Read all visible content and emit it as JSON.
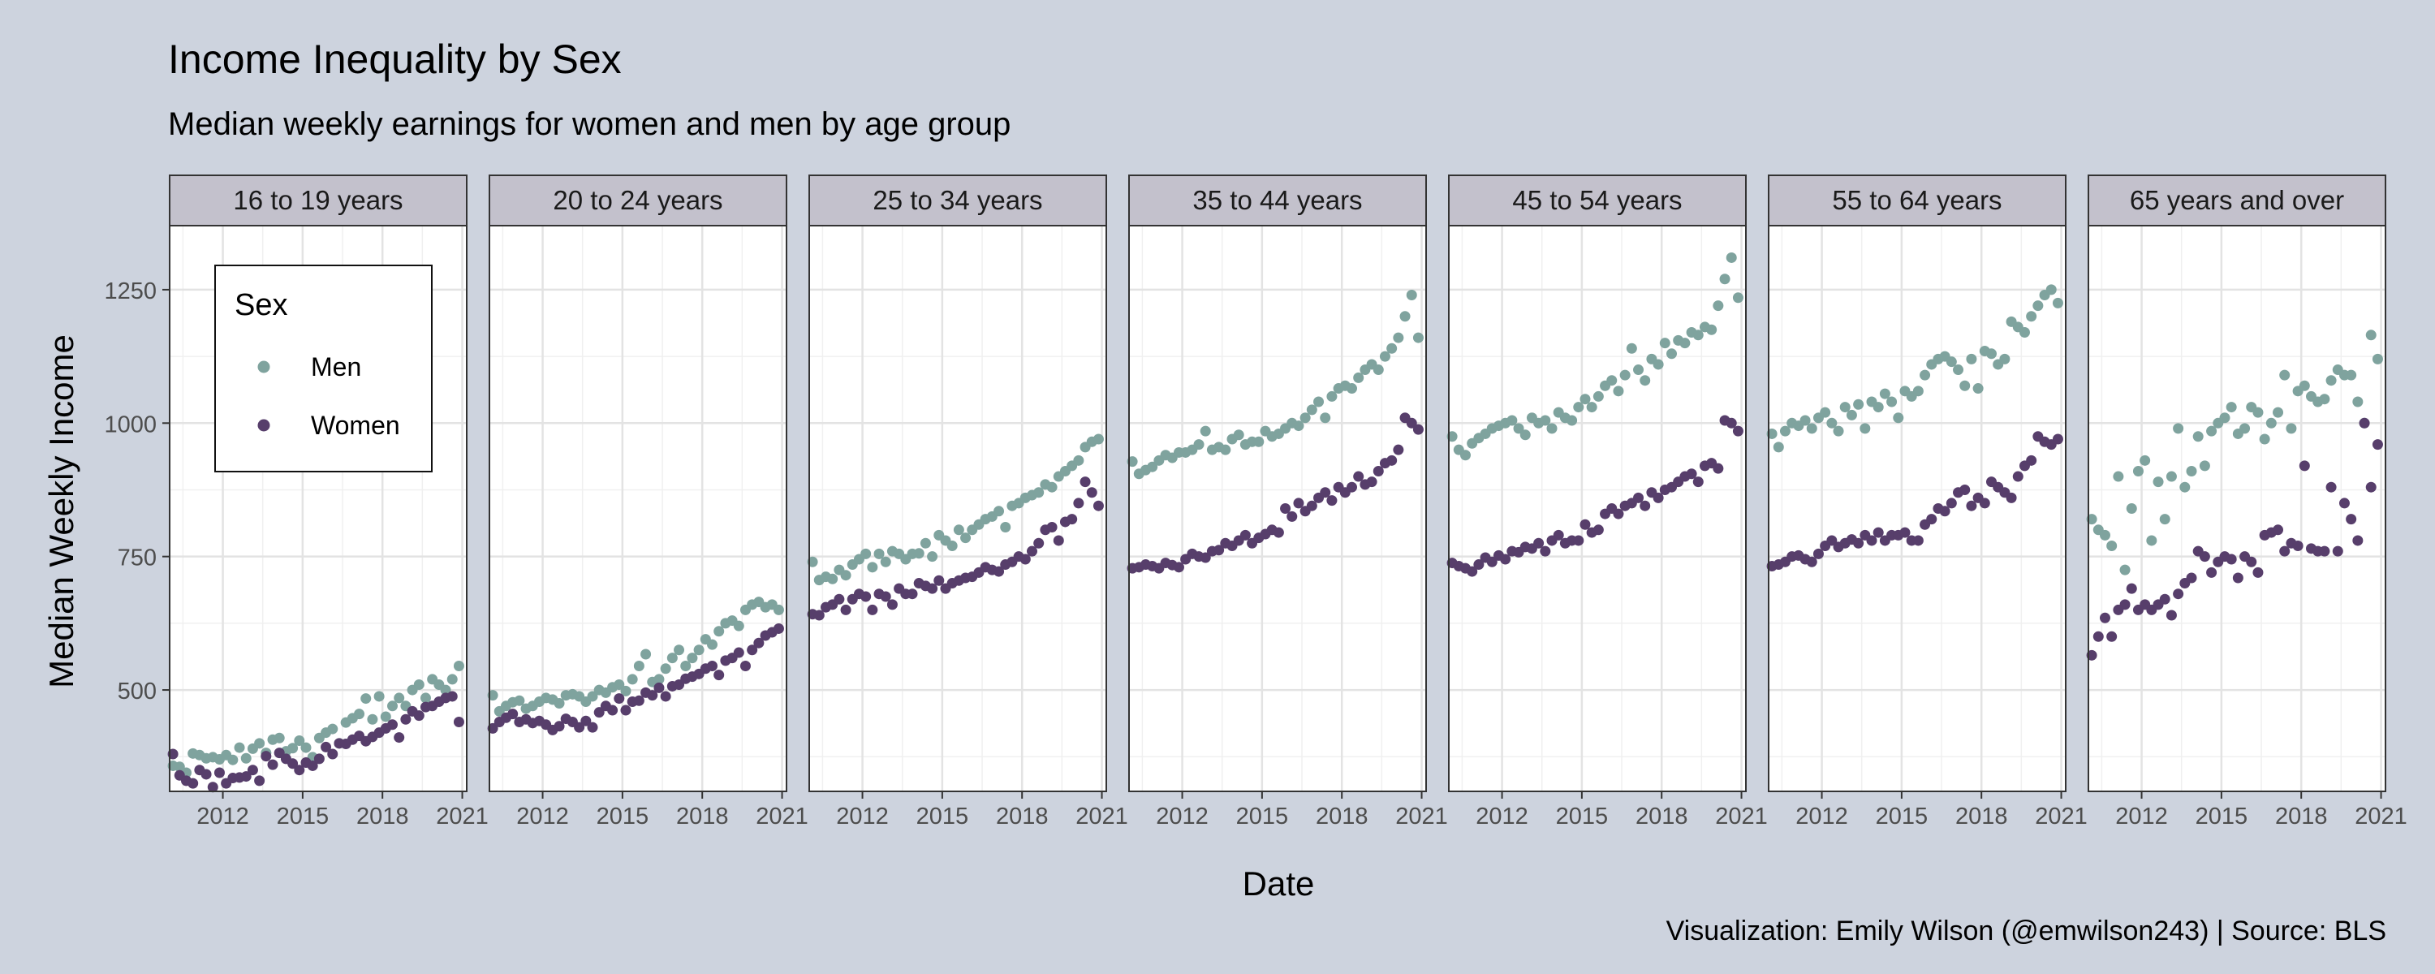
{
  "chart_data": {
    "type": "scatter",
    "title": "Income Inequality by Sex",
    "subtitle": "Median weekly earnings for women and men by age group",
    "xlabel": "Date",
    "ylabel": "Median Weekly Income",
    "caption": "Visualization: Emily Wilson (@emwilson243) | Source: BLS",
    "x_range": [
      "2010-01",
      "2021-03"
    ],
    "x_ticks": [
      "2012",
      "2015",
      "2018",
      "2021"
    ],
    "ylim": [
      310,
      1370
    ],
    "y_ticks": [
      500,
      750,
      1000,
      1250
    ],
    "grid": true,
    "legend": {
      "title": "Sex",
      "placement": "inside first panel, top-left",
      "entries": [
        {
          "label": "Men",
          "color": "#7fa39e"
        },
        {
          "label": "Women",
          "color": "#573e6b"
        }
      ]
    },
    "colors": {
      "men": "#7fa39e",
      "women": "#573e6b",
      "page_background": "#cdd3de",
      "strip_background": "#c3c1cc"
    },
    "x_unit": "quarter",
    "x_quarters": [
      "2010-Q1",
      "2010-Q2",
      "2010-Q3",
      "2010-Q4",
      "2011-Q1",
      "2011-Q2",
      "2011-Q3",
      "2011-Q4",
      "2012-Q1",
      "2012-Q2",
      "2012-Q3",
      "2012-Q4",
      "2013-Q1",
      "2013-Q2",
      "2013-Q3",
      "2013-Q4",
      "2014-Q1",
      "2014-Q2",
      "2014-Q3",
      "2014-Q4",
      "2015-Q1",
      "2015-Q2",
      "2015-Q3",
      "2015-Q4",
      "2016-Q1",
      "2016-Q2",
      "2016-Q3",
      "2016-Q4",
      "2017-Q1",
      "2017-Q2",
      "2017-Q3",
      "2017-Q4",
      "2018-Q1",
      "2018-Q2",
      "2018-Q3",
      "2018-Q4",
      "2019-Q1",
      "2019-Q2",
      "2019-Q3",
      "2019-Q4",
      "2020-Q1",
      "2020-Q2",
      "2020-Q3",
      "2020-Q4"
    ],
    "panels": [
      {
        "label": "16 to 19 years",
        "series": [
          {
            "name": "Men",
            "values": [
              358,
              356,
              345,
              381,
              378,
              372,
              374,
              370,
              378,
              369,
              392,
              372,
              390,
              400,
              382,
              407,
              410,
              385,
              391,
              405,
              392,
              374,
              410,
              420,
              427,
              400,
              439,
              447,
              455,
              484,
              445,
              488,
              450,
              470,
              485,
              470,
              500,
              510,
              485,
              520,
              510,
              500,
              520,
              545
            ]
          },
          {
            "name": "Women",
            "values": [
              380,
              340,
              330,
              325,
              350,
              342,
              318,
              345,
              325,
              335,
              336,
              338,
              350,
              330,
              376,
              360,
              382,
              371,
              362,
              350,
              364,
              358,
              371,
              393,
              380,
              400,
              399,
              407,
              414,
              404,
              412,
              420,
              428,
              435,
              411,
              445,
              460,
              452,
              468,
              470,
              478,
              485,
              488,
              440
            ]
          }
        ]
      },
      {
        "label": "20 to 24 years",
        "series": [
          {
            "name": "Men",
            "values": [
              490,
              460,
              470,
              477,
              480,
              465,
              470,
              478,
              485,
              482,
              475,
              490,
              492,
              488,
              478,
              488,
              500,
              495,
              505,
              510,
              498,
              520,
              545,
              567,
              515,
              520,
              540,
              560,
              575,
              545,
              560,
              575,
              595,
              585,
              610,
              625,
              630,
              620,
              650,
              660,
              665,
              655,
              660,
              650
            ]
          },
          {
            "name": "Women",
            "values": [
              428,
              440,
              448,
              455,
              440,
              445,
              438,
              442,
              435,
              425,
              432,
              446,
              440,
              430,
              442,
              430,
              458,
              470,
              462,
              484,
              462,
              478,
              480,
              495,
              490,
              504,
              488,
              507,
              510,
              521,
              525,
              530,
              540,
              545,
              528,
              555,
              560,
              570,
              545,
              575,
              588,
              602,
              608,
              615
            ]
          }
        ]
      },
      {
        "label": "25 to 34 years",
        "series": [
          {
            "name": "Men",
            "values": [
              740,
              706,
              712,
              708,
              725,
              715,
              735,
              745,
              755,
              730,
              755,
              740,
              760,
              755,
              745,
              755,
              756,
              775,
              750,
              790,
              780,
              770,
              800,
              785,
              800,
              810,
              820,
              825,
              835,
              805,
              845,
              850,
              860,
              865,
              870,
              885,
              880,
              900,
              910,
              920,
              930,
              955,
              965,
              970
            ]
          },
          {
            "name": "Women",
            "values": [
              642,
              640,
              655,
              660,
              670,
              650,
              670,
              680,
              675,
              650,
              680,
              675,
              660,
              690,
              680,
              680,
              700,
              695,
              690,
              705,
              690,
              700,
              705,
              710,
              712,
              720,
              730,
              725,
              722,
              735,
              740,
              750,
              745,
              760,
              775,
              800,
              805,
              780,
              815,
              820,
              850,
              890,
              870,
              845
            ]
          }
        ]
      },
      {
        "label": "35 to 44 years",
        "series": [
          {
            "name": "Men",
            "values": [
              928,
              905,
              912,
              918,
              930,
              940,
              935,
              945,
              945,
              950,
              960,
              985,
              950,
              955,
              950,
              970,
              978,
              960,
              965,
              965,
              985,
              975,
              980,
              990,
              1000,
              995,
              1010,
              1025,
              1040,
              1010,
              1050,
              1065,
              1070,
              1065,
              1085,
              1100,
              1110,
              1100,
              1125,
              1140,
              1160,
              1200,
              1240,
              1160
            ]
          },
          {
            "name": "Women",
            "values": [
              728,
              730,
              735,
              732,
              728,
              738,
              734,
              730,
              745,
              755,
              750,
              748,
              760,
              762,
              775,
              770,
              780,
              790,
              775,
              785,
              792,
              800,
              795,
              840,
              825,
              850,
              835,
              845,
              860,
              870,
              855,
              880,
              870,
              880,
              900,
              885,
              890,
              910,
              925,
              930,
              950,
              1010,
              1000,
              988
            ]
          }
        ]
      },
      {
        "label": "45 to 54 years",
        "series": [
          {
            "name": "Men",
            "values": [
              975,
              950,
              940,
              962,
              972,
              980,
              990,
              995,
              1000,
              1005,
              990,
              978,
              1010,
              1000,
              1005,
              990,
              1020,
              1010,
              1005,
              1030,
              1045,
              1030,
              1050,
              1070,
              1080,
              1060,
              1090,
              1140,
              1100,
              1080,
              1120,
              1110,
              1150,
              1130,
              1155,
              1150,
              1170,
              1165,
              1180,
              1175,
              1220,
              1270,
              1310,
              1235
            ]
          },
          {
            "name": "Women",
            "values": [
              738,
              732,
              728,
              722,
              735,
              748,
              740,
              752,
              745,
              760,
              758,
              768,
              765,
              775,
              760,
              780,
              790,
              775,
              780,
              780,
              810,
              795,
              800,
              830,
              840,
              830,
              845,
              850,
              860,
              845,
              870,
              860,
              875,
              880,
              890,
              900,
              905,
              890,
              920,
              925,
              915,
              1005,
              1000,
              985
            ]
          }
        ]
      },
      {
        "label": "55 to 64 years",
        "series": [
          {
            "name": "Men",
            "values": [
              980,
              955,
              985,
              1000,
              995,
              1005,
              990,
              1010,
              1020,
              1000,
              985,
              1030,
              1015,
              1035,
              990,
              1040,
              1030,
              1055,
              1040,
              1010,
              1060,
              1050,
              1060,
              1090,
              1110,
              1120,
              1125,
              1115,
              1100,
              1070,
              1120,
              1065,
              1135,
              1130,
              1110,
              1120,
              1190,
              1180,
              1170,
              1200,
              1220,
              1240,
              1250,
              1225
            ]
          },
          {
            "name": "Women",
            "values": [
              732,
              735,
              740,
              750,
              752,
              745,
              740,
              755,
              770,
              780,
              768,
              775,
              782,
              775,
              790,
              780,
              795,
              780,
              790,
              790,
              795,
              780,
              780,
              810,
              820,
              840,
              835,
              850,
              870,
              875,
              845,
              860,
              850,
              890,
              880,
              870,
              860,
              900,
              920,
              930,
              975,
              965,
              960,
              970
            ]
          }
        ]
      },
      {
        "label": "65 years and over",
        "series": [
          {
            "name": "Men",
            "values": [
              820,
              800,
              790,
              770,
              900,
              725,
              840,
              910,
              930,
              780,
              890,
              820,
              900,
              990,
              880,
              910,
              975,
              920,
              985,
              1000,
              1010,
              1030,
              980,
              990,
              1030,
              1020,
              970,
              1000,
              1020,
              1090,
              990,
              1060,
              1070,
              1050,
              1040,
              1045,
              1080,
              1100,
              1090,
              1090,
              1040,
              1000,
              1165,
              1120
            ]
          },
          {
            "name": "Women",
            "values": [
              565,
              600,
              635,
              600,
              650,
              660,
              690,
              650,
              660,
              650,
              660,
              670,
              640,
              680,
              700,
              710,
              760,
              750,
              720,
              740,
              750,
              745,
              710,
              750,
              740,
              720,
              790,
              795,
              800,
              760,
              775,
              770,
              920,
              765,
              760,
              760,
              880,
              760,
              850,
              820,
              780,
              1000,
              880,
              960
            ]
          }
        ]
      }
    ]
  }
}
